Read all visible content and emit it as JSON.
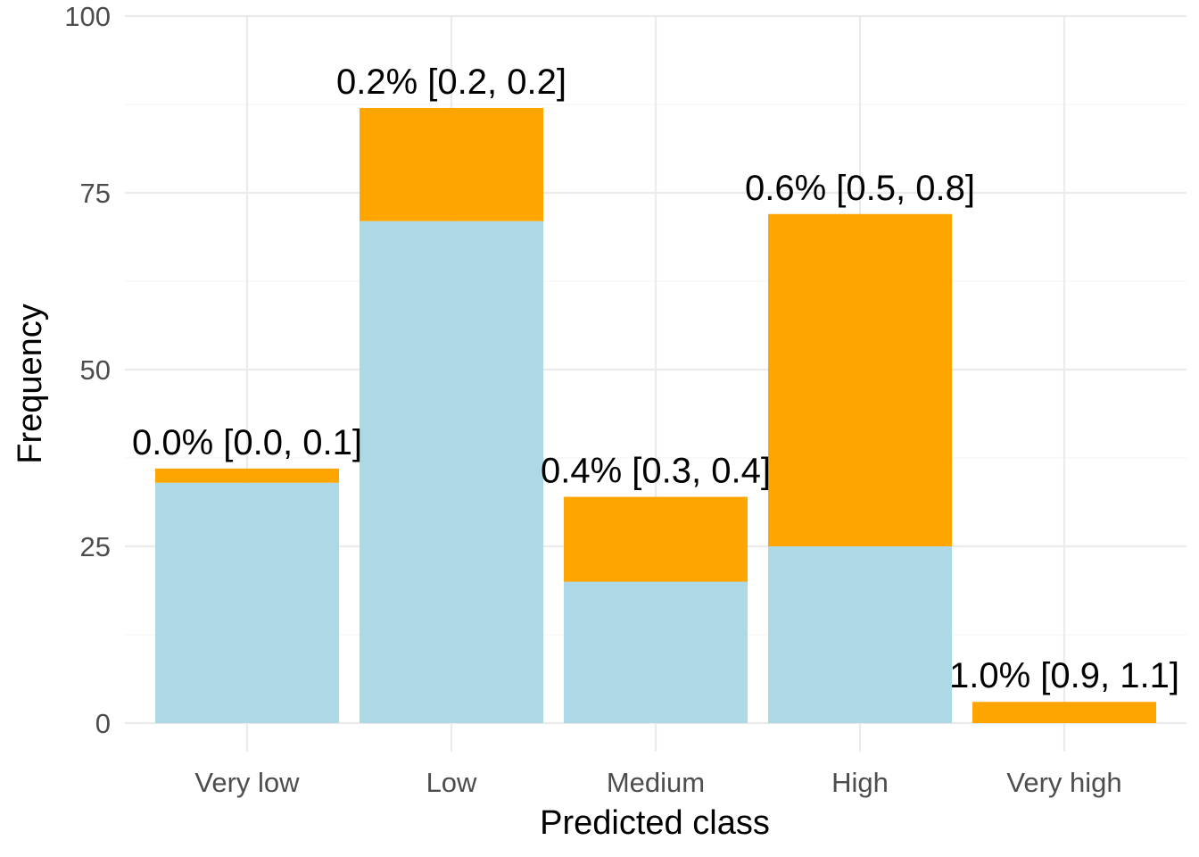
{
  "chart_data": {
    "type": "bar",
    "stacked": true,
    "categories": [
      "Very low",
      "Low",
      "Medium",
      "High",
      "Very high"
    ],
    "series": [
      {
        "color": "#ADD8E6",
        "values": [
          34,
          71,
          20,
          25,
          0
        ]
      },
      {
        "color": "#FFA500",
        "values": [
          2,
          16,
          12,
          47,
          3
        ]
      }
    ],
    "bar_labels": [
      "0.0% [0.0, 0.1]",
      "0.2% [0.2, 0.2]",
      "0.4% [0.3, 0.4]",
      "0.6% [0.5, 0.8]",
      "1.0% [0.9, 1.1]"
    ],
    "xlabel": "Predicted class",
    "ylabel": "Frequency",
    "ylim": [
      0,
      100
    ],
    "yticks": [
      0,
      25,
      50,
      75,
      100
    ],
    "grid": true,
    "legend": "none"
  }
}
